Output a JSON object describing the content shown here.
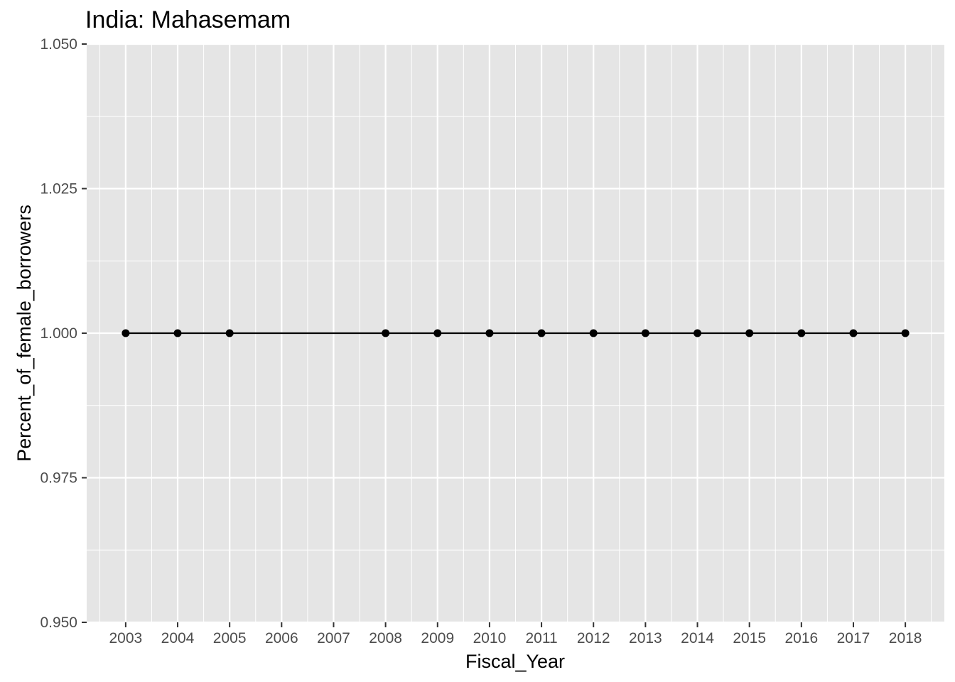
{
  "chart_data": {
    "type": "line",
    "title": "India:  Mahasemam",
    "xlabel": "Fiscal_Year",
    "ylabel": "Percent_of_female_borrowers",
    "x_ticks": [
      "2003",
      "2004",
      "2005",
      "2006",
      "2007",
      "2008",
      "2009",
      "2010",
      "2011",
      "2012",
      "2013",
      "2014",
      "2015",
      "2016",
      "2017",
      "2018"
    ],
    "y_ticks": [
      "0.950",
      "0.975",
      "1.000",
      "1.025",
      "1.050"
    ],
    "xlim": [
      2002.25,
      2018.75
    ],
    "ylim": [
      0.95,
      1.05
    ],
    "grid": true,
    "legend": "none",
    "series": [
      {
        "x": [
          2003,
          2004,
          2005,
          2008,
          2009,
          2010,
          2011,
          2012,
          2013,
          2014,
          2015,
          2016,
          2017,
          2018
        ],
        "y": [
          1,
          1,
          1,
          1,
          1,
          1,
          1,
          1,
          1,
          1,
          1,
          1,
          1,
          1
        ]
      }
    ],
    "colors": {
      "panel": "#e5e5e5",
      "grid": "#ffffff",
      "line": "#000000",
      "point": "#000000"
    }
  }
}
